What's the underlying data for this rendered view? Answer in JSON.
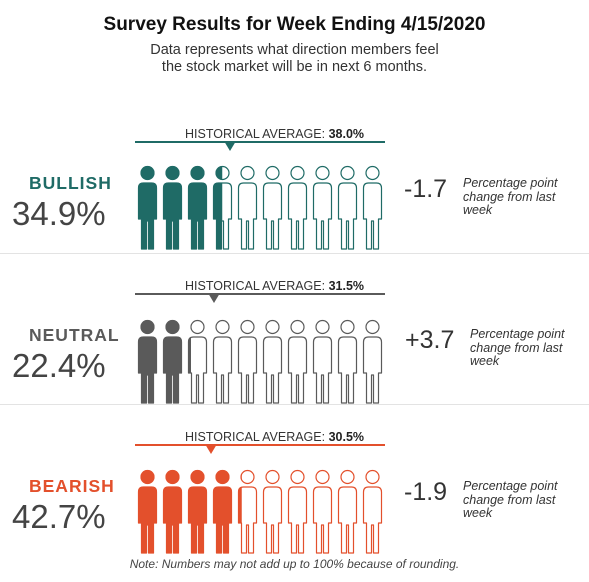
{
  "header": {
    "title": "Survey Results for Week Ending 4/15/2020",
    "subtitle": "Data represents what direction members feel the stock market will be in next 6 months."
  },
  "chart_data": {
    "type": "pictograph",
    "people_per_row": 10,
    "categories": [
      {
        "name": "BULLISH",
        "value": 34.9,
        "value_label": "34.9%",
        "historical_average": 38.0,
        "historical_label": "HISTORICAL AVERAGE:",
        "historical_value_label": "38.0%",
        "change": "-1.7",
        "change_note": "Percentage point change from last week",
        "color": "#1f6b66"
      },
      {
        "name": "NEUTRAL",
        "value": 22.4,
        "value_label": "22.4%",
        "historical_average": 31.5,
        "historical_label": "HISTORICAL AVERAGE:",
        "historical_value_label": "31.5%",
        "change": "+3.7",
        "change_note": "Percentage point change from last week",
        "color": "#5a5a5a"
      },
      {
        "name": "BEARISH",
        "value": 42.7,
        "value_label": "42.7%",
        "historical_average": 30.5,
        "historical_label": "HISTORICAL AVERAGE:",
        "historical_value_label": "30.5%",
        "change": "-1.9",
        "change_note": "Percentage point change from last week",
        "color": "#e3502c"
      }
    ]
  },
  "footer": {
    "note": "Note: Numbers may not add up to 100% because of rounding."
  }
}
